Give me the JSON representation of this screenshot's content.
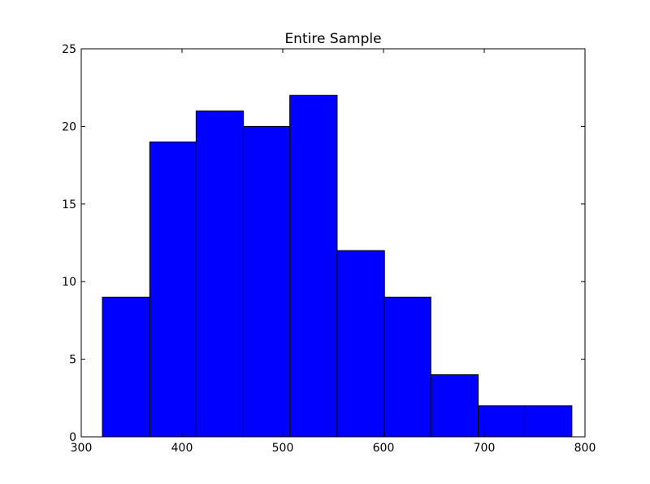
{
  "chart_data": {
    "type": "histogram",
    "title": "Entire Sample",
    "xlabel": "",
    "ylabel": "",
    "xlim": [
      300,
      800
    ],
    "ylim": [
      0,
      25
    ],
    "xticks": [
      300,
      400,
      500,
      600,
      700,
      800
    ],
    "yticks": [
      0,
      5,
      10,
      15,
      20,
      25
    ],
    "bins": [
      {
        "x0": 321,
        "x1": 368,
        "count": 9
      },
      {
        "x0": 368,
        "x1": 414,
        "count": 19
      },
      {
        "x0": 414,
        "x1": 461,
        "count": 21
      },
      {
        "x0": 461,
        "x1": 507,
        "count": 20
      },
      {
        "x0": 507,
        "x1": 554,
        "count": 22
      },
      {
        "x0": 554,
        "x1": 601,
        "count": 12
      },
      {
        "x0": 601,
        "x1": 647,
        "count": 9
      },
      {
        "x0": 647,
        "x1": 694,
        "count": 4
      },
      {
        "x0": 694,
        "x1": 740,
        "count": 2
      },
      {
        "x0": 740,
        "x1": 787,
        "count": 2
      }
    ],
    "bar_color": "#0000ff",
    "edge_color": "#000000",
    "grid": false,
    "legend": "none"
  }
}
